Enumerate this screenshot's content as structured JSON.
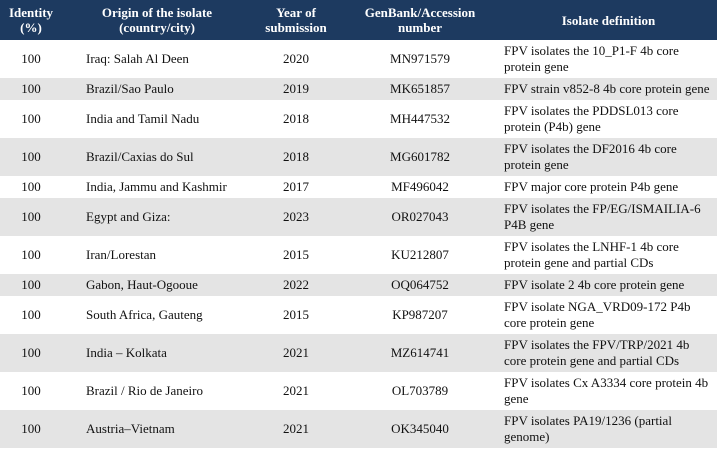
{
  "table": {
    "header": [
      "Identity (%)",
      "Origin of the isolate (country/city)",
      "Year of submission",
      "GenBank/Accession number",
      "Isolate definition"
    ],
    "rows": [
      [
        "100",
        "Iraq: Salah Al Deen",
        "2020",
        "MN971579",
        "FPV isolates the 10_P1-F 4b core protein gene"
      ],
      [
        "100",
        "Brazil/Sao Paulo",
        "2019",
        "MK651857",
        "FPV strain v852-8 4b core protein gene"
      ],
      [
        "100",
        "India and Tamil Nadu",
        "2018",
        "MH447532",
        "FPV isolates the PDDSL013 core protein (P4b) gene"
      ],
      [
        "100",
        "Brazil/Caxias do Sul",
        "2018",
        "MG601782",
        "FPV isolates the DF2016 4b core protein gene"
      ],
      [
        "100",
        "India, Jammu and Kashmir",
        "2017",
        "MF496042",
        "FPV major core protein P4b gene"
      ],
      [
        "100",
        "Egypt and Giza:",
        "2023",
        "OR027043",
        "FPV isolates the FP/EG/ISMAILIA-6 P4B gene"
      ],
      [
        "100",
        "Iran/Lorestan",
        "2015",
        "KU212807",
        "FPV isolates the LNHF-1 4b core protein gene and partial CDs"
      ],
      [
        "100",
        "Gabon, Haut-Ogooue",
        "2022",
        "OQ064752",
        "FPV isolate 2 4b core protein gene"
      ],
      [
        "100",
        "South Africa, Gauteng",
        "2015",
        "KP987207",
        "FPV isolate NGA_VRD09-172 P4b core protein gene"
      ],
      [
        "100",
        "India – Kolkata",
        "2021",
        "MZ614741",
        "FPV isolates the FPV/TRP/2021 4b core protein gene and partial CDs"
      ],
      [
        "100",
        "Brazil / Rio de Janeiro",
        "2021",
        "OL703789",
        "FPV isolates Cx A3334 core protein 4b gene"
      ],
      [
        "100",
        "Austria–Vietnam",
        "2021",
        "OK345040",
        "FPV isolates PA19/1236 (partial genome)"
      ]
    ]
  }
}
